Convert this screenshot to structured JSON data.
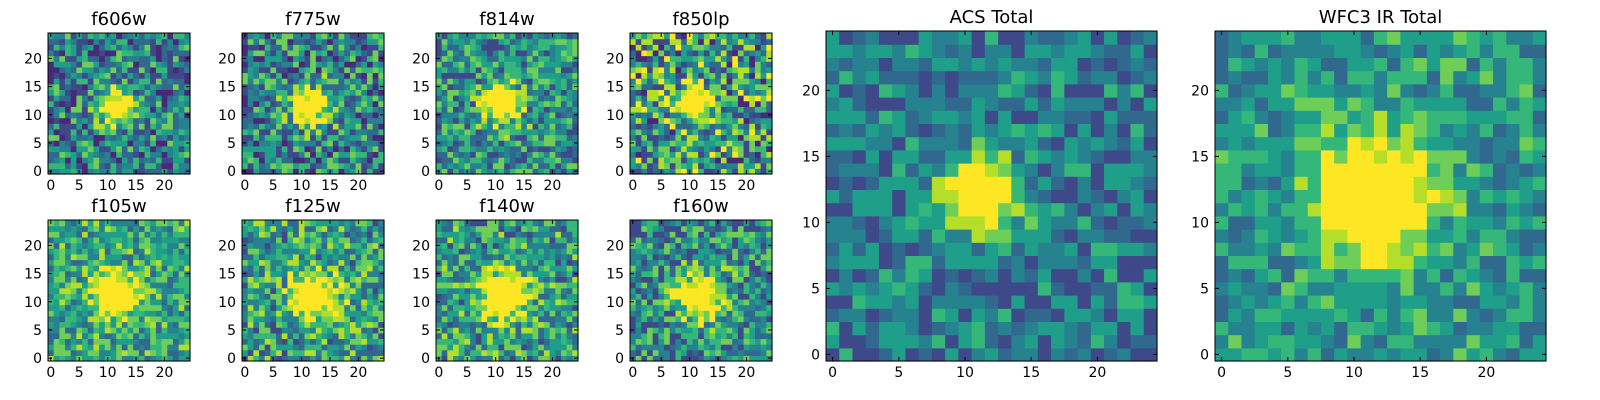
{
  "figure": {
    "colormap": "viridis",
    "grid": false,
    "colors": [
      "#440154",
      "#482878",
      "#3e4989",
      "#31688e",
      "#26828e",
      "#1f9e89",
      "#35b779",
      "#6ece58",
      "#b5de2b",
      "#fde725"
    ]
  },
  "chart_data": [
    {
      "type": "heatmap",
      "title": "f606w",
      "xlim": [
        0,
        24
      ],
      "ylim": [
        0,
        24
      ],
      "xticks": [
        "0",
        "5",
        "10",
        "15",
        "20"
      ],
      "yticks": [
        "0",
        "5",
        "10",
        "15",
        "20"
      ],
      "center": [
        11.5,
        11.5
      ],
      "peak_intensity": 0.9,
      "spread": 2.2,
      "background": 0.45,
      "noise": 0.32,
      "seed": 11
    },
    {
      "type": "heatmap",
      "title": "f775w",
      "xlim": [
        0,
        24
      ],
      "ylim": [
        0,
        24
      ],
      "xticks": [
        "0",
        "5",
        "10",
        "15",
        "20"
      ],
      "yticks": [
        "0",
        "5",
        "10",
        "15",
        "20"
      ],
      "center": [
        11.5,
        11.5
      ],
      "peak_intensity": 0.85,
      "spread": 2.3,
      "background": 0.46,
      "noise": 0.34,
      "seed": 23
    },
    {
      "type": "heatmap",
      "title": "f814w",
      "xlim": [
        0,
        24
      ],
      "ylim": [
        0,
        24
      ],
      "xticks": [
        "0",
        "5",
        "10",
        "15",
        "20"
      ],
      "yticks": [
        "0",
        "5",
        "10",
        "15",
        "20"
      ],
      "center": [
        11,
        12
      ],
      "peak_intensity": 0.85,
      "spread": 2.3,
      "background": 0.5,
      "noise": 0.3,
      "seed": 37
    },
    {
      "type": "heatmap",
      "title": "f850lp",
      "xlim": [
        0,
        24
      ],
      "ylim": [
        0,
        24
      ],
      "xticks": [
        "0",
        "5",
        "10",
        "15",
        "20"
      ],
      "yticks": [
        "0",
        "5",
        "10",
        "15",
        "20"
      ],
      "center": [
        11,
        12
      ],
      "peak_intensity": 0.8,
      "spread": 2.2,
      "background": 0.55,
      "noise": 0.4,
      "seed": 51
    },
    {
      "type": "heatmap",
      "title": "f105w",
      "xlim": [
        0,
        24
      ],
      "ylim": [
        0,
        24
      ],
      "xticks": [
        "0",
        "5",
        "10",
        "15",
        "20"
      ],
      "yticks": [
        "0",
        "5",
        "10",
        "15",
        "20"
      ],
      "center": [
        11.5,
        11.5
      ],
      "peak_intensity": 0.85,
      "spread": 2.6,
      "background": 0.58,
      "noise": 0.25,
      "seed": 67
    },
    {
      "type": "heatmap",
      "title": "f125w",
      "xlim": [
        0,
        24
      ],
      "ylim": [
        0,
        24
      ],
      "xticks": [
        "0",
        "5",
        "10",
        "15",
        "20"
      ],
      "yticks": [
        "0",
        "5",
        "10",
        "15",
        "20"
      ],
      "center": [
        12,
        11
      ],
      "peak_intensity": 0.8,
      "spread": 2.8,
      "background": 0.55,
      "noise": 0.3,
      "seed": 79
    },
    {
      "type": "heatmap",
      "title": "f140w",
      "xlim": [
        0,
        24
      ],
      "ylim": [
        0,
        24
      ],
      "xticks": [
        "0",
        "5",
        "10",
        "15",
        "20"
      ],
      "yticks": [
        "0",
        "5",
        "10",
        "15",
        "20"
      ],
      "center": [
        11.5,
        11
      ],
      "peak_intensity": 0.85,
      "spread": 2.8,
      "background": 0.55,
      "noise": 0.3,
      "seed": 91
    },
    {
      "type": "heatmap",
      "title": "f160w",
      "xlim": [
        0,
        24
      ],
      "ylim": [
        0,
        24
      ],
      "xticks": [
        "0",
        "5",
        "10",
        "15",
        "20"
      ],
      "yticks": [
        "0",
        "5",
        "10",
        "15",
        "20"
      ],
      "center": [
        12,
        11
      ],
      "peak_intensity": 0.85,
      "spread": 2.6,
      "background": 0.5,
      "noise": 0.3,
      "seed": 103
    },
    {
      "type": "heatmap",
      "title": "ACS Total",
      "xlim": [
        0,
        24
      ],
      "ylim": [
        0,
        24
      ],
      "xticks": [
        "0",
        "5",
        "10",
        "15",
        "20"
      ],
      "yticks": [
        "0",
        "5",
        "10",
        "15",
        "20"
      ],
      "center": [
        11,
        12
      ],
      "peak_intensity": 0.95,
      "spread": 2.0,
      "background": 0.42,
      "noise": 0.22,
      "seed": 131
    },
    {
      "type": "heatmap",
      "title": "WFC3 IR Total",
      "xlim": [
        0,
        24
      ],
      "ylim": [
        0,
        24
      ],
      "xticks": [
        "0",
        "5",
        "10",
        "15",
        "20"
      ],
      "yticks": [
        "0",
        "5",
        "10",
        "15",
        "20"
      ],
      "center": [
        11.5,
        12
      ],
      "peak_intensity": 0.85,
      "spread": 3.2,
      "background": 0.52,
      "noise": 0.2,
      "seed": 149
    }
  ]
}
